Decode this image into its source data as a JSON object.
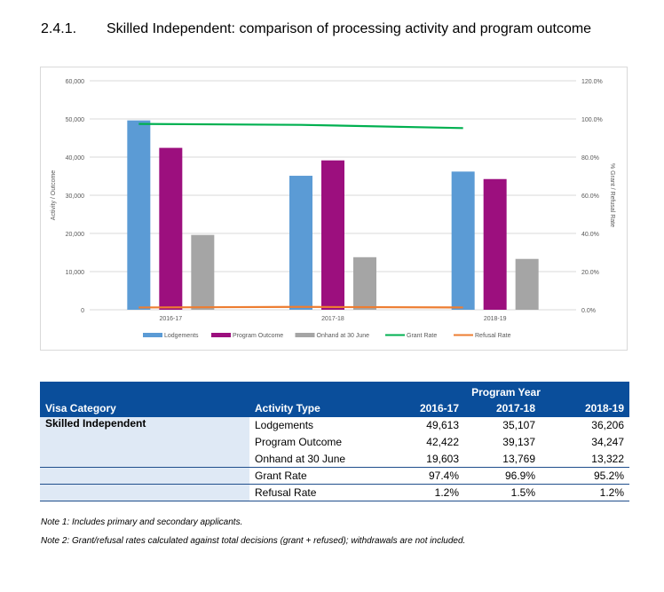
{
  "heading": {
    "number": "2.4.1.",
    "title": "Skilled Independent: comparison of processing activity and program outcome"
  },
  "chart_data": {
    "type": "bar",
    "categories": [
      "2016-17",
      "2017-18",
      "2018-19"
    ],
    "series": [
      {
        "name": "Lodgements",
        "kind": "bar",
        "axis": "left",
        "color": "#5b9bd5",
        "values": [
          49613,
          35107,
          36206
        ]
      },
      {
        "name": "Program Outcome",
        "kind": "bar",
        "axis": "left",
        "color": "#9c0f7e",
        "values": [
          42422,
          39137,
          34247
        ]
      },
      {
        "name": "Onhand at 30 June",
        "kind": "bar",
        "axis": "left",
        "color": "#a5a5a5",
        "values": [
          19603,
          13769,
          13322
        ]
      },
      {
        "name": "Grant Rate",
        "kind": "line",
        "axis": "right",
        "color": "#00b050",
        "values": [
          97.4,
          96.9,
          95.2
        ]
      },
      {
        "name": "Refusal Rate",
        "kind": "line",
        "axis": "right",
        "color": "#ed7d31",
        "values": [
          1.2,
          1.5,
          1.2
        ]
      }
    ],
    "ylabel": "Activity / Outcome",
    "y2label": "% Grant / Refusal Rate",
    "ylim": [
      0,
      60000
    ],
    "y2lim": [
      0,
      120
    ],
    "yticks": [
      "0",
      "10,000",
      "20,000",
      "30,000",
      "40,000",
      "50,000",
      "60,000"
    ],
    "y2ticks": [
      "0.0%",
      "20.0%",
      "40.0%",
      "60.0%",
      "80.0%",
      "100.0%",
      "120.0%"
    ],
    "grid": true,
    "legend_position": "bottom"
  },
  "table": {
    "program_year_label": "Program Year",
    "visa_category_header": "Visa Category",
    "activity_type_header": "Activity Type",
    "years": [
      "2016-17",
      "2017-18",
      "2018-19"
    ],
    "category": "Skilled Independent",
    "rows": [
      {
        "activity": "Lodgements",
        "values": [
          "49,613",
          "35,107",
          "36,206"
        ]
      },
      {
        "activity": "Program Outcome",
        "values": [
          "42,422",
          "39,137",
          "34,247"
        ]
      },
      {
        "activity": "Onhand at 30 June",
        "values": [
          "19,603",
          "13,769",
          "13,322"
        ]
      },
      {
        "activity": "Grant Rate",
        "values": [
          "97.4%",
          "96.9%",
          "95.2%"
        ]
      },
      {
        "activity": "Refusal Rate",
        "values": [
          "1.2%",
          "1.5%",
          "1.2%"
        ]
      }
    ]
  },
  "notes": [
    "Note 1: Includes primary and secondary applicants.",
    "Note 2: Grant/refusal rates calculated against total decisions (grant + refused); withdrawals are not included."
  ]
}
